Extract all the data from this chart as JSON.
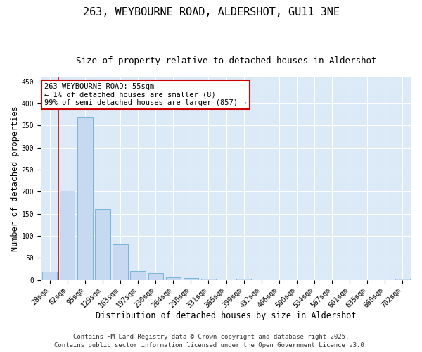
{
  "title": "263, WEYBOURNE ROAD, ALDERSHOT, GU11 3NE",
  "subtitle": "Size of property relative to detached houses in Aldershot",
  "xlabel": "Distribution of detached houses by size in Aldershot",
  "ylabel": "Number of detached properties",
  "categories": [
    "28sqm",
    "62sqm",
    "95sqm",
    "129sqm",
    "163sqm",
    "197sqm",
    "230sqm",
    "264sqm",
    "298sqm",
    "331sqm",
    "365sqm",
    "399sqm",
    "432sqm",
    "466sqm",
    "500sqm",
    "534sqm",
    "567sqm",
    "601sqm",
    "635sqm",
    "668sqm",
    "702sqm"
  ],
  "values": [
    18,
    202,
    370,
    160,
    80,
    20,
    15,
    6,
    4,
    2,
    0,
    2,
    0,
    0,
    0,
    0,
    0,
    0,
    0,
    0,
    2
  ],
  "bar_color": "#c6d9f0",
  "bar_edge_color": "#6baed6",
  "ylim": [
    0,
    460
  ],
  "yticks": [
    0,
    50,
    100,
    150,
    200,
    250,
    300,
    350,
    400,
    450
  ],
  "annotation_title": "263 WEYBOURNE ROAD: 55sqm",
  "annotation_line1": "← 1% of detached houses are smaller (8)",
  "annotation_line2": "99% of semi-detached houses are larger (857) →",
  "annotation_box_color": "#ffffff",
  "annotation_box_edge": "#cc0000",
  "red_line_color": "#cc0000",
  "background_color": "#dce9f7",
  "grid_color": "#ffffff",
  "footer1": "Contains HM Land Registry data © Crown copyright and database right 2025.",
  "footer2": "Contains public sector information licensed under the Open Government Licence v3.0.",
  "title_fontsize": 11,
  "subtitle_fontsize": 9,
  "axis_label_fontsize": 8.5,
  "tick_fontsize": 7,
  "annotation_fontsize": 7.5,
  "footer_fontsize": 6.5
}
